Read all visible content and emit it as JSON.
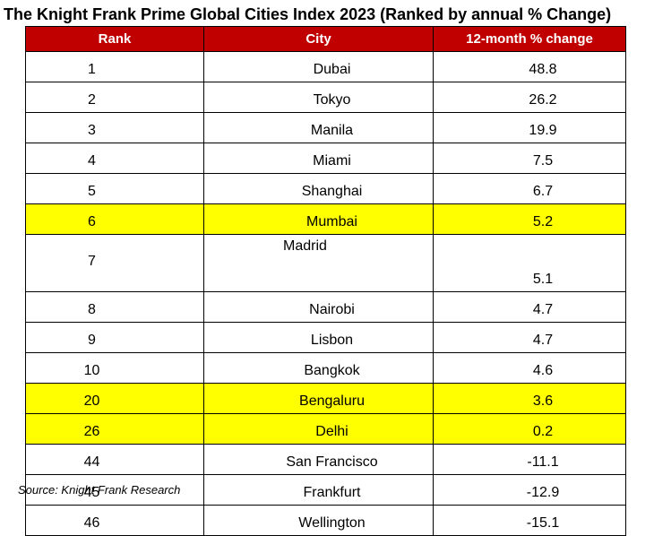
{
  "title": "The Knight Frank Prime Global Cities Index 2023 (Ranked by annual % Change)",
  "colors": {
    "header_bg": "#c00000",
    "header_text": "#ffffff",
    "highlight": "#ffff00"
  },
  "table": {
    "headers": [
      "Rank",
      "City",
      "12-month % change"
    ],
    "rows": [
      {
        "rank": "1",
        "city": "Dubai",
        "change": "48.8",
        "highlight": false
      },
      {
        "rank": "2",
        "city": "Tokyo",
        "change": "26.2",
        "highlight": false
      },
      {
        "rank": "3",
        "city": "Manila",
        "change": "19.9",
        "highlight": false
      },
      {
        "rank": "4",
        "city": "Miami",
        "change": "7.5",
        "highlight": false
      },
      {
        "rank": "5",
        "city": "Shanghai",
        "change": "6.7",
        "highlight": false
      },
      {
        "rank": "6",
        "city": "Mumbai",
        "change": "5.2",
        "highlight": true
      },
      {
        "rank": "7",
        "city": "Madrid",
        "change": "5.1",
        "highlight": false
      },
      {
        "rank": "8",
        "city": "Nairobi",
        "change": "4.7",
        "highlight": false
      },
      {
        "rank": "9",
        "city": "Lisbon",
        "change": "4.7",
        "highlight": false
      },
      {
        "rank": "10",
        "city": "Bangkok",
        "change": "4.6",
        "highlight": false
      },
      {
        "rank": "20",
        "city": "Bengaluru",
        "change": "3.6",
        "highlight": true
      },
      {
        "rank": "26",
        "city": "Delhi",
        "change": "0.2",
        "highlight": true
      },
      {
        "rank": "44",
        "city": "San Francisco",
        "change": "-11.1",
        "highlight": false
      },
      {
        "rank": "45",
        "city": "Frankfurt",
        "change": "-12.9",
        "highlight": false
      },
      {
        "rank": "46",
        "city": "Wellington",
        "change": "-15.1",
        "highlight": false
      }
    ]
  },
  "source": "Source: Knight Frank Research"
}
